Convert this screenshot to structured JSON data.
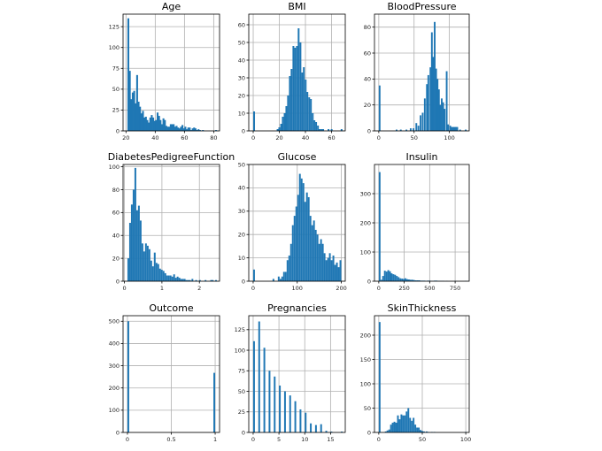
{
  "chart_data": [
    {
      "type": "bar",
      "title": "Age",
      "xlim": [
        18,
        84
      ],
      "ylim": [
        0,
        140
      ],
      "xticks": [
        20,
        40,
        60,
        80
      ],
      "yticks": [
        0,
        25,
        50,
        75,
        100,
        125
      ],
      "bin_width": 1.25,
      "bins": [
        [
          21,
          135
        ],
        [
          22,
          72
        ],
        [
          23,
          38
        ],
        [
          24,
          46
        ],
        [
          25,
          48
        ],
        [
          26,
          33
        ],
        [
          27,
          67
        ],
        [
          28,
          35
        ],
        [
          29,
          29
        ],
        [
          30,
          21
        ],
        [
          31,
          24
        ],
        [
          32,
          16
        ],
        [
          33,
          17
        ],
        [
          34,
          13
        ],
        [
          35,
          10
        ],
        [
          36,
          16
        ],
        [
          37,
          19
        ],
        [
          38,
          16
        ],
        [
          39,
          12
        ],
        [
          40,
          13
        ],
        [
          41,
          22
        ],
        [
          42,
          18
        ],
        [
          43,
          13
        ],
        [
          44,
          8
        ],
        [
          45,
          15
        ],
        [
          46,
          13
        ],
        [
          47,
          6
        ],
        [
          48,
          5
        ],
        [
          49,
          5
        ],
        [
          50,
          8
        ],
        [
          51,
          8
        ],
        [
          52,
          8
        ],
        [
          53,
          5
        ],
        [
          54,
          6
        ],
        [
          55,
          4
        ],
        [
          56,
          3
        ],
        [
          57,
          5
        ],
        [
          58,
          7
        ],
        [
          59,
          3
        ],
        [
          60,
          5
        ],
        [
          61,
          2
        ],
        [
          62,
          4
        ],
        [
          63,
          4
        ],
        [
          64,
          1
        ],
        [
          65,
          3
        ],
        [
          66,
          4
        ],
        [
          67,
          3
        ],
        [
          68,
          1
        ],
        [
          69,
          2
        ],
        [
          70,
          1
        ],
        [
          72,
          1
        ],
        [
          81,
          1
        ]
      ]
    },
    {
      "type": "bar",
      "title": "BMI",
      "xlim": [
        -3.4,
        70.5
      ],
      "ylim": [
        0,
        66
      ],
      "xticks": [
        0,
        20,
        40,
        60
      ],
      "yticks": [
        0,
        10,
        20,
        30,
        40,
        50,
        60
      ],
      "bin_width": 1.35,
      "bins": [
        [
          0,
          11
        ],
        [
          18,
          1
        ],
        [
          19.3,
          2
        ],
        [
          20.7,
          4
        ],
        [
          22,
          8
        ],
        [
          23.4,
          10
        ],
        [
          24.7,
          14
        ],
        [
          26,
          20
        ],
        [
          27.4,
          31
        ],
        [
          28.7,
          35
        ],
        [
          30.1,
          48
        ],
        [
          31.4,
          47
        ],
        [
          32.8,
          48
        ],
        [
          34.1,
          58
        ],
        [
          35.5,
          50
        ],
        [
          36.8,
          33
        ],
        [
          38.1,
          36
        ],
        [
          39.5,
          29
        ],
        [
          40.8,
          22
        ],
        [
          42.2,
          19
        ],
        [
          43.5,
          18
        ],
        [
          44.9,
          10
        ],
        [
          46.2,
          6
        ],
        [
          47.5,
          5
        ],
        [
          48.9,
          3
        ],
        [
          50.2,
          1
        ],
        [
          51.6,
          1
        ],
        [
          52.9,
          1
        ],
        [
          57,
          1
        ],
        [
          59.4,
          1
        ],
        [
          67,
          1
        ]
      ]
    },
    {
      "type": "bar",
      "title": "BloodPressure",
      "xlim": [
        -6.1,
        128.1
      ],
      "ylim": [
        0,
        90
      ],
      "xticks": [
        0,
        50,
        100
      ],
      "yticks": [
        0,
        20,
        40,
        60,
        80
      ],
      "bin_width": 2.4,
      "bins": [
        [
          0,
          35
        ],
        [
          24,
          1
        ],
        [
          30,
          1
        ],
        [
          38,
          1
        ],
        [
          44,
          2
        ],
        [
          48,
          2
        ],
        [
          52,
          6
        ],
        [
          55,
          4
        ],
        [
          58,
          12
        ],
        [
          61,
          14
        ],
        [
          64,
          25
        ],
        [
          67,
          36
        ],
        [
          69,
          43
        ],
        [
          72,
          49
        ],
        [
          74,
          76
        ],
        [
          76,
          57
        ],
        [
          78,
          84
        ],
        [
          80,
          48
        ],
        [
          82,
          40
        ],
        [
          84,
          32
        ],
        [
          86,
          20
        ],
        [
          88,
          25
        ],
        [
          90,
          22
        ],
        [
          92,
          17
        ],
        [
          95,
          46
        ],
        [
          97,
          5
        ],
        [
          100,
          4
        ],
        [
          102,
          3
        ],
        [
          104,
          3
        ],
        [
          106,
          3
        ],
        [
          108,
          3
        ],
        [
          110,
          3
        ],
        [
          114,
          1
        ],
        [
          122,
          1
        ]
      ]
    },
    {
      "type": "bar",
      "title": "DiabetesPedigreeFunction",
      "xlim": [
        -0.037,
        2.538
      ],
      "ylim": [
        0,
        102
      ],
      "xticks": [
        0,
        1,
        2
      ],
      "yticks": [
        0,
        20,
        40,
        60,
        80,
        100
      ],
      "bin_width": 0.047,
      "bins": [
        [
          0.08,
          20
        ],
        [
          0.127,
          51
        ],
        [
          0.174,
          67
        ],
        [
          0.221,
          80
        ],
        [
          0.268,
          99
        ],
        [
          0.315,
          62
        ],
        [
          0.362,
          66
        ],
        [
          0.409,
          53
        ],
        [
          0.456,
          33
        ],
        [
          0.503,
          26
        ],
        [
          0.55,
          33
        ],
        [
          0.597,
          31
        ],
        [
          0.644,
          28
        ],
        [
          0.691,
          18
        ],
        [
          0.738,
          13
        ],
        [
          0.785,
          25
        ],
        [
          0.832,
          16
        ],
        [
          0.879,
          15
        ],
        [
          0.926,
          11
        ],
        [
          0.973,
          10
        ],
        [
          1.02,
          9
        ],
        [
          1.067,
          7
        ],
        [
          1.114,
          5
        ],
        [
          1.161,
          5
        ],
        [
          1.208,
          5
        ],
        [
          1.255,
          4
        ],
        [
          1.302,
          6
        ],
        [
          1.349,
          3
        ],
        [
          1.396,
          4
        ],
        [
          1.443,
          3
        ],
        [
          1.49,
          2
        ],
        [
          1.537,
          2
        ],
        [
          1.584,
          2
        ],
        [
          1.631,
          1
        ],
        [
          1.678,
          1
        ],
        [
          1.725,
          1
        ],
        [
          1.79,
          2
        ],
        [
          1.89,
          1
        ],
        [
          1.99,
          1
        ],
        [
          2.14,
          1
        ],
        [
          2.29,
          1
        ],
        [
          2.33,
          1
        ],
        [
          2.42,
          1
        ]
      ]
    },
    {
      "type": "bar",
      "title": "Glucose",
      "xlim": [
        -9.95,
        208.95
      ],
      "ylim": [
        0,
        50
      ],
      "xticks": [
        0,
        100,
        200
      ],
      "yticks": [
        0,
        10,
        20,
        30,
        40,
        50
      ],
      "bin_width": 3.98,
      "bins": [
        [
          0,
          5
        ],
        [
          44,
          1
        ],
        [
          56,
          2
        ],
        [
          60,
          1
        ],
        [
          64,
          2
        ],
        [
          68,
          4
        ],
        [
          72,
          4
        ],
        [
          76,
          9
        ],
        [
          80,
          11
        ],
        [
          84,
          16
        ],
        [
          88,
          24
        ],
        [
          92,
          28
        ],
        [
          96,
          32
        ],
        [
          100,
          37
        ],
        [
          104,
          46
        ],
        [
          108,
          44
        ],
        [
          112,
          42
        ],
        [
          116,
          34
        ],
        [
          120,
          38
        ],
        [
          124,
          36
        ],
        [
          128,
          28
        ],
        [
          132,
          24
        ],
        [
          136,
          26
        ],
        [
          140,
          22
        ],
        [
          144,
          20
        ],
        [
          148,
          16
        ],
        [
          152,
          18
        ],
        [
          156,
          16
        ],
        [
          160,
          12
        ],
        [
          164,
          9
        ],
        [
          168,
          10
        ],
        [
          172,
          12
        ],
        [
          176,
          9
        ],
        [
          180,
          11
        ],
        [
          184,
          7
        ],
        [
          188,
          8
        ],
        [
          192,
          6
        ],
        [
          196,
          9
        ]
      ]
    },
    {
      "type": "bar",
      "title": "Insulin",
      "xlim": [
        -42.3,
        888.3
      ],
      "ylim": [
        0,
        400
      ],
      "xticks": [
        0,
        250,
        500,
        750
      ],
      "yticks": [
        0,
        100,
        200,
        300
      ],
      "bin_width": 16.9,
      "bins": [
        [
          0,
          374
        ],
        [
          17,
          5
        ],
        [
          34,
          18
        ],
        [
          51,
          36
        ],
        [
          68,
          33
        ],
        [
          85,
          38
        ],
        [
          102,
          34
        ],
        [
          118,
          27
        ],
        [
          135,
          24
        ],
        [
          152,
          22
        ],
        [
          169,
          18
        ],
        [
          186,
          14
        ],
        [
          203,
          10
        ],
        [
          220,
          9
        ],
        [
          237,
          8
        ],
        [
          254,
          10
        ],
        [
          271,
          7
        ],
        [
          288,
          6
        ],
        [
          305,
          5
        ],
        [
          322,
          5
        ],
        [
          338,
          4
        ],
        [
          355,
          3
        ],
        [
          372,
          3
        ],
        [
          389,
          3
        ],
        [
          406,
          2
        ],
        [
          423,
          2
        ],
        [
          440,
          2
        ],
        [
          457,
          1
        ],
        [
          474,
          2
        ],
        [
          491,
          2
        ],
        [
          508,
          1
        ],
        [
          525,
          1
        ],
        [
          542,
          2
        ],
        [
          559,
          2
        ],
        [
          576,
          1
        ],
        [
          593,
          1
        ],
        [
          610,
          1
        ],
        [
          627,
          1
        ],
        [
          660,
          1
        ],
        [
          744,
          1
        ],
        [
          846,
          1
        ]
      ]
    },
    {
      "type": "bar",
      "title": "Outcome",
      "xlim": [
        -0.05,
        1.05
      ],
      "ylim": [
        0,
        525
      ],
      "xticks": [
        0.0,
        0.5,
        1.0
      ],
      "yticks": [
        0,
        100,
        200,
        300,
        400,
        500
      ],
      "bin_width": 0.02,
      "bins": [
        [
          0,
          500
        ],
        [
          0.98,
          268
        ]
      ]
    },
    {
      "type": "bar",
      "title": "Pregnancies",
      "xlim": [
        -0.85,
        17.85
      ],
      "ylim": [
        0,
        142
      ],
      "xticks": [
        0,
        5,
        10,
        15
      ],
      "yticks": [
        0,
        25,
        50,
        75,
        100,
        125
      ],
      "bin_width": 0.34,
      "bins": [
        [
          0,
          111
        ],
        [
          1,
          135
        ],
        [
          2,
          103
        ],
        [
          3,
          75
        ],
        [
          4,
          68
        ],
        [
          5,
          57
        ],
        [
          6,
          50
        ],
        [
          7,
          45
        ],
        [
          8,
          38
        ],
        [
          9,
          28
        ],
        [
          10,
          24
        ],
        [
          11,
          11
        ],
        [
          12,
          9
        ],
        [
          13,
          10
        ],
        [
          14,
          2
        ],
        [
          15,
          1
        ],
        [
          17,
          1
        ]
      ]
    },
    {
      "type": "bar",
      "title": "SkinThickness",
      "xlim": [
        -4.95,
        103.95
      ],
      "ylim": [
        0,
        240
      ],
      "xticks": [
        0,
        50,
        100
      ],
      "yticks": [
        0,
        50,
        100,
        150,
        200
      ],
      "bin_width": 1.98,
      "bins": [
        [
          0,
          227
        ],
        [
          7,
          2
        ],
        [
          9,
          4
        ],
        [
          11,
          6
        ],
        [
          13,
          16
        ],
        [
          15,
          20
        ],
        [
          17,
          22
        ],
        [
          19,
          20
        ],
        [
          21,
          35
        ],
        [
          23,
          27
        ],
        [
          25,
          37
        ],
        [
          27,
          35
        ],
        [
          29,
          35
        ],
        [
          31,
          43
        ],
        [
          33,
          50
        ],
        [
          35,
          30
        ],
        [
          37,
          24
        ],
        [
          39,
          30
        ],
        [
          41,
          16
        ],
        [
          43,
          10
        ],
        [
          45,
          10
        ],
        [
          47,
          5
        ],
        [
          49,
          3
        ],
        [
          51,
          2
        ],
        [
          54,
          2
        ],
        [
          56,
          1
        ],
        [
          60,
          1
        ],
        [
          63,
          1
        ],
        [
          99,
          1
        ]
      ]
    }
  ]
}
